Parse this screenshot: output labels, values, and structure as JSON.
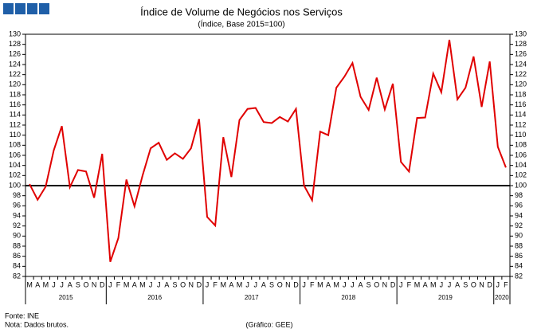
{
  "chart_data": {
    "type": "line",
    "title": "Índice de Volume de Negócios nos Serviços",
    "subtitle": "(Índice, Base 2015=100)",
    "categories": [
      "M",
      "A",
      "M",
      "J",
      "J",
      "A",
      "S",
      "O",
      "N",
      "D",
      "J",
      "F",
      "M",
      "A",
      "M",
      "J",
      "J",
      "A",
      "S",
      "O",
      "N",
      "D",
      "J",
      "F",
      "M",
      "A",
      "M",
      "J",
      "J",
      "A",
      "S",
      "O",
      "N",
      "D",
      "J",
      "F",
      "M",
      "A",
      "M",
      "J",
      "J",
      "A",
      "S",
      "O",
      "N",
      "D",
      "J",
      "F",
      "M",
      "A",
      "M",
      "J",
      "J",
      "A",
      "S",
      "O",
      "N",
      "D",
      "J",
      "F"
    ],
    "years": [
      "2015",
      "2016",
      "2017",
      "2018",
      "2019",
      "2020"
    ],
    "series": [
      {
        "color": "#e00000",
        "values": [
          100.3,
          97.2,
          99.8,
          107.0,
          111.8,
          99.7,
          103.1,
          102.8,
          97.6,
          106.3,
          84.9,
          89.6,
          101.2,
          95.9,
          102.0,
          107.4,
          108.5,
          105.1,
          106.4,
          105.3,
          107.4,
          113.2,
          93.8,
          92.1,
          109.6,
          101.7,
          113.0,
          115.2,
          115.4,
          112.6,
          112.4,
          113.6,
          112.7,
          115.2,
          100.0,
          97.1,
          110.7,
          110.0,
          119.4,
          121.6,
          124.3,
          117.6,
          115.0,
          121.4,
          115.1,
          120.2,
          104.7,
          102.8,
          113.4,
          113.5,
          122.2,
          118.5,
          128.9,
          117.1,
          119.4,
          125.6,
          115.6,
          124.6,
          107.7,
          103.6
        ]
      }
    ],
    "reference_line": 100,
    "ylim": [
      82,
      130
    ],
    "yticks": [
      82,
      84,
      86,
      88,
      90,
      92,
      94,
      96,
      98,
      100,
      102,
      104,
      106,
      108,
      110,
      112,
      114,
      116,
      118,
      120,
      122,
      124,
      126,
      128,
      130
    ],
    "source": "Fonte: INE",
    "note": "Nota: Dados brutos.",
    "credit": "(Gráfico: GEE)"
  }
}
